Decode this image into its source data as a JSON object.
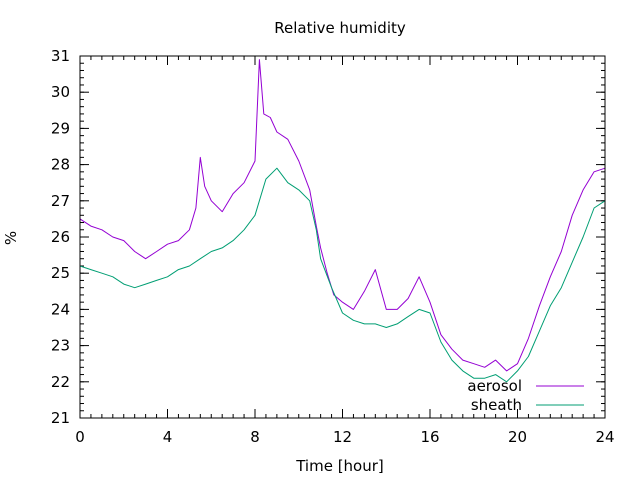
{
  "chart_data": {
    "type": "line",
    "title": "Relative humidity",
    "xlabel": "Time [hour]",
    "ylabel": "%",
    "xlim": [
      0,
      24
    ],
    "ylim": [
      21,
      31
    ],
    "x_major_ticks": [
      0,
      4,
      8,
      12,
      16,
      20,
      24
    ],
    "x_minor_step": 0.5,
    "y_major_ticks": [
      21,
      22,
      23,
      24,
      25,
      26,
      27,
      28,
      29,
      30,
      31
    ],
    "y_minor_step": 0.2,
    "grid": false,
    "legend": "bottom-right",
    "series": [
      {
        "name": "aerosol",
        "color": "#9400d3",
        "points": [
          [
            0.0,
            26.5
          ],
          [
            0.5,
            26.3
          ],
          [
            1.0,
            26.2
          ],
          [
            1.5,
            26.0
          ],
          [
            2.0,
            25.9
          ],
          [
            2.5,
            25.6
          ],
          [
            3.0,
            25.4
          ],
          [
            3.5,
            25.6
          ],
          [
            4.0,
            25.8
          ],
          [
            4.5,
            25.9
          ],
          [
            5.0,
            26.2
          ],
          [
            5.3,
            26.8
          ],
          [
            5.5,
            28.2
          ],
          [
            5.7,
            27.4
          ],
          [
            6.0,
            27.0
          ],
          [
            6.5,
            26.7
          ],
          [
            7.0,
            27.2
          ],
          [
            7.5,
            27.5
          ],
          [
            8.0,
            28.1
          ],
          [
            8.2,
            30.9
          ],
          [
            8.4,
            29.4
          ],
          [
            8.7,
            29.3
          ],
          [
            9.0,
            28.9
          ],
          [
            9.5,
            28.7
          ],
          [
            10.0,
            28.1
          ],
          [
            10.5,
            27.3
          ],
          [
            10.8,
            26.3
          ],
          [
            11.0,
            25.7
          ],
          [
            11.3,
            25.0
          ],
          [
            11.6,
            24.4
          ],
          [
            12.0,
            24.2
          ],
          [
            12.5,
            24.0
          ],
          [
            13.0,
            24.5
          ],
          [
            13.5,
            25.1
          ],
          [
            14.0,
            24.0
          ],
          [
            14.5,
            24.0
          ],
          [
            15.0,
            24.3
          ],
          [
            15.5,
            24.9
          ],
          [
            16.0,
            24.2
          ],
          [
            16.5,
            23.3
          ],
          [
            17.0,
            22.9
          ],
          [
            17.5,
            22.6
          ],
          [
            18.0,
            22.5
          ],
          [
            18.5,
            22.4
          ],
          [
            19.0,
            22.6
          ],
          [
            19.5,
            22.3
          ],
          [
            20.0,
            22.5
          ],
          [
            20.5,
            23.2
          ],
          [
            21.0,
            24.1
          ],
          [
            21.5,
            24.9
          ],
          [
            22.0,
            25.6
          ],
          [
            22.5,
            26.6
          ],
          [
            23.0,
            27.3
          ],
          [
            23.5,
            27.8
          ],
          [
            24.0,
            27.9
          ]
        ]
      },
      {
        "name": "sheath",
        "color": "#009e73",
        "points": [
          [
            0.0,
            25.2
          ],
          [
            0.5,
            25.1
          ],
          [
            1.0,
            25.0
          ],
          [
            1.5,
            24.9
          ],
          [
            2.0,
            24.7
          ],
          [
            2.5,
            24.6
          ],
          [
            3.0,
            24.7
          ],
          [
            3.5,
            24.8
          ],
          [
            4.0,
            24.9
          ],
          [
            4.5,
            25.1
          ],
          [
            5.0,
            25.2
          ],
          [
            5.5,
            25.4
          ],
          [
            6.0,
            25.6
          ],
          [
            6.5,
            25.7
          ],
          [
            7.0,
            25.9
          ],
          [
            7.5,
            26.2
          ],
          [
            8.0,
            26.6
          ],
          [
            8.5,
            27.6
          ],
          [
            9.0,
            27.9
          ],
          [
            9.5,
            27.5
          ],
          [
            10.0,
            27.3
          ],
          [
            10.5,
            27.0
          ],
          [
            10.8,
            26.2
          ],
          [
            11.0,
            25.4
          ],
          [
            11.5,
            24.6
          ],
          [
            12.0,
            23.9
          ],
          [
            12.5,
            23.7
          ],
          [
            13.0,
            23.6
          ],
          [
            13.5,
            23.6
          ],
          [
            14.0,
            23.5
          ],
          [
            14.5,
            23.6
          ],
          [
            15.0,
            23.8
          ],
          [
            15.5,
            24.0
          ],
          [
            16.0,
            23.9
          ],
          [
            16.5,
            23.1
          ],
          [
            17.0,
            22.6
          ],
          [
            17.5,
            22.3
          ],
          [
            18.0,
            22.1
          ],
          [
            18.5,
            22.1
          ],
          [
            19.0,
            22.2
          ],
          [
            19.5,
            22.0
          ],
          [
            20.0,
            22.3
          ],
          [
            20.5,
            22.7
          ],
          [
            21.0,
            23.4
          ],
          [
            21.5,
            24.1
          ],
          [
            22.0,
            24.6
          ],
          [
            22.5,
            25.3
          ],
          [
            23.0,
            26.0
          ],
          [
            23.5,
            26.8
          ],
          [
            24.0,
            27.0
          ]
        ]
      }
    ]
  }
}
